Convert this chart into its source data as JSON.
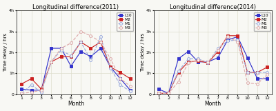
{
  "months": [
    1,
    2,
    3,
    4,
    5,
    6,
    7,
    8,
    9,
    10,
    11,
    12
  ],
  "chart2011": {
    "title": "Longitudinal difference(2011)",
    "L10": [
      0.25,
      0.2,
      0.2,
      2.2,
      2.2,
      1.35,
      2.05,
      1.8,
      2.2,
      1.3,
      0.75,
      0.2
    ],
    "M2": [
      0.5,
      0.75,
      0.25,
      1.55,
      1.8,
      1.8,
      2.5,
      2.2,
      2.5,
      1.3,
      1.05,
      0.75
    ],
    "M1": [
      0.05,
      0.45,
      0.1,
      1.55,
      2.1,
      1.85,
      2.5,
      1.65,
      2.75,
      1.25,
      0.45,
      0.15
    ],
    "M3": [
      0.05,
      0.1,
      0.2,
      1.55,
      2.2,
      2.45,
      3.0,
      2.8,
      2.5,
      1.7,
      0.75,
      0.4
    ]
  },
  "chart2014": {
    "title": "Longitudinal difference(2014)",
    "L10": [
      0.25,
      0.05,
      1.7,
      2.05,
      1.55,
      1.55,
      1.75,
      2.6,
      2.75,
      1.75,
      0.75,
      0.75
    ],
    "M2": [
      0.05,
      0.05,
      1.05,
      1.55,
      1.6,
      1.5,
      2.05,
      2.8,
      2.8,
      1.05,
      1.05,
      1.3
    ],
    "M1": [
      0.05,
      0.05,
      1.1,
      1.7,
      1.7,
      1.5,
      2.2,
      2.55,
      2.6,
      1.05,
      1.05,
      1.05
    ],
    "M3": [
      0.05,
      0.05,
      0.6,
      1.5,
      1.65,
      1.55,
      2.1,
      2.75,
      2.5,
      0.55,
      0.5,
      0.95
    ]
  },
  "colors": {
    "L10": "#3333cc",
    "M2": "#cc2222",
    "M1": "#99aadd",
    "M3": "#ddaaaa"
  },
  "markers": {
    "L10": "s",
    "M2": "s",
    "M1": "o",
    "M3": "o"
  },
  "linestyles": {
    "L10": "-",
    "M2": "-",
    "M1": "--",
    "M3": "--"
  },
  "ylabel": "Time delay / hrs",
  "xlabel": "Month",
  "ylim": [
    0,
    4
  ],
  "yticks": [
    0,
    1,
    2,
    3,
    4
  ],
  "yticklabels": [
    "0",
    "1h",
    "2h",
    "3h",
    "4h"
  ],
  "xticks": [
    1,
    2,
    3,
    4,
    5,
    6,
    7,
    8,
    9,
    10,
    11,
    12
  ],
  "bg_color": "#f8f8f4",
  "grid_color": "#ddddcc"
}
